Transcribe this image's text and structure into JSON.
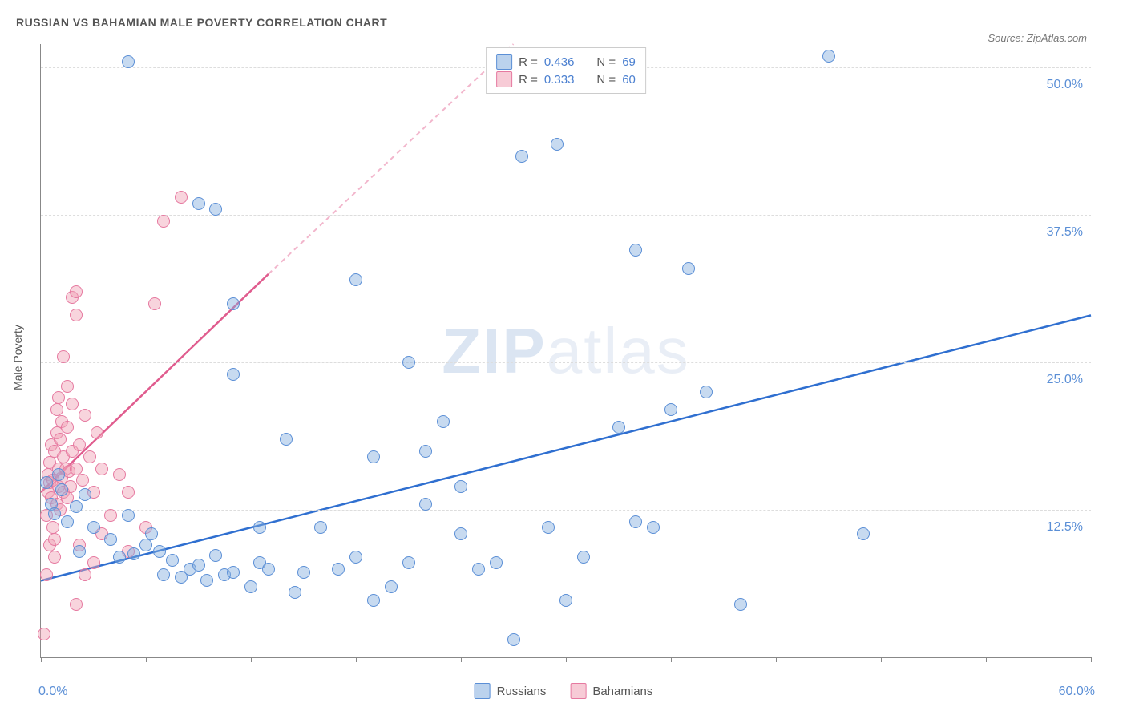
{
  "title": "RUSSIAN VS BAHAMIAN MALE POVERTY CORRELATION CHART",
  "source_label": "Source: ZipAtlas.com",
  "watermark": {
    "left": "ZIP",
    "right": "atlas"
  },
  "y_axis_title": "Male Poverty",
  "xlim": [
    0,
    60
  ],
  "ylim": [
    0,
    52
  ],
  "x_start_label": "0.0%",
  "x_end_label": "60.0%",
  "x_ticks": [
    0,
    6,
    12,
    18,
    24,
    30,
    36,
    42,
    48,
    54,
    60
  ],
  "y_grid": [
    {
      "v": 12.5,
      "label": "12.5%"
    },
    {
      "v": 25.0,
      "label": "25.0%"
    },
    {
      "v": 37.5,
      "label": "37.5%"
    },
    {
      "v": 50.0,
      "label": "50.0%"
    }
  ],
  "colors": {
    "blue_fill": "rgba(131,173,222,0.45)",
    "blue_stroke": "#5b8fd6",
    "blue_line": "#2f6fd0",
    "pink_fill": "rgba(240,160,180,0.45)",
    "pink_stroke": "#e679a0",
    "pink_line": "#e05c8e",
    "grid": "#dddddd",
    "axis": "#888888",
    "text": "#555555",
    "value": "#4a7fd0",
    "bg": "#ffffff"
  },
  "marker_size": 16,
  "stats_legend": [
    {
      "swatch": "blue",
      "r_label": "R =",
      "r": "0.436",
      "n_label": "N =",
      "n": "69"
    },
    {
      "swatch": "pink",
      "r_label": "R =",
      "r": "0.333",
      "n_label": "N =",
      "n": "60"
    }
  ],
  "series_legend": [
    {
      "swatch": "blue",
      "label": "Russians"
    },
    {
      "swatch": "pink",
      "label": "Bahamians"
    }
  ],
  "trend_lines": {
    "blue": {
      "x1": 0,
      "y1": 6.5,
      "x2": 60,
      "y2": 29.0,
      "color": "#2f6fd0",
      "width": 2.5
    },
    "pink_solid": {
      "x1": 0,
      "y1": 14.0,
      "x2": 13,
      "y2": 32.5,
      "color": "#e05c8e",
      "width": 2.5
    },
    "pink_dash": {
      "x1": 13,
      "y1": 32.5,
      "x2": 27,
      "y2": 52.0,
      "color": "#f2b6cc",
      "width": 2,
      "dash": "6,5"
    }
  },
  "series": {
    "russians": {
      "color": "blue",
      "points": [
        [
          0.3,
          14.8
        ],
        [
          0.6,
          13.0
        ],
        [
          0.8,
          12.2
        ],
        [
          1.0,
          15.5
        ],
        [
          1.2,
          14.2
        ],
        [
          1.5,
          11.5
        ],
        [
          2.0,
          12.8
        ],
        [
          2.2,
          9.0
        ],
        [
          2.5,
          13.8
        ],
        [
          3.0,
          11.0
        ],
        [
          4.0,
          10.0
        ],
        [
          4.5,
          8.5
        ],
        [
          5.0,
          12.0
        ],
        [
          5.0,
          50.5
        ],
        [
          5.3,
          8.8
        ],
        [
          6.0,
          9.5
        ],
        [
          6.3,
          10.5
        ],
        [
          6.8,
          9.0
        ],
        [
          7.0,
          7.0
        ],
        [
          7.5,
          8.2
        ],
        [
          8.0,
          6.8
        ],
        [
          8.5,
          7.5
        ],
        [
          9.0,
          7.8
        ],
        [
          9.0,
          38.5
        ],
        [
          9.5,
          6.5
        ],
        [
          10.0,
          8.6
        ],
        [
          10.0,
          38.0
        ],
        [
          10.5,
          7.0
        ],
        [
          11.0,
          7.2
        ],
        [
          11.0,
          30.0
        ],
        [
          11.0,
          24.0
        ],
        [
          12.0,
          6.0
        ],
        [
          12.5,
          8.0
        ],
        [
          12.5,
          11.0
        ],
        [
          13.0,
          7.5
        ],
        [
          14.0,
          18.5
        ],
        [
          14.5,
          5.5
        ],
        [
          15.0,
          7.2
        ],
        [
          16.0,
          11.0
        ],
        [
          17.0,
          7.5
        ],
        [
          18.0,
          8.5
        ],
        [
          18.0,
          32.0
        ],
        [
          19.0,
          17.0
        ],
        [
          19.0,
          4.8
        ],
        [
          20.0,
          6.0
        ],
        [
          21.0,
          8.0
        ],
        [
          21.0,
          25.0
        ],
        [
          22.0,
          17.5
        ],
        [
          22.0,
          13.0
        ],
        [
          23.0,
          20.0
        ],
        [
          24.0,
          10.5
        ],
        [
          24.0,
          14.5
        ],
        [
          25.0,
          7.5
        ],
        [
          26.0,
          8.0
        ],
        [
          27.0,
          1.5
        ],
        [
          27.5,
          42.5
        ],
        [
          29.0,
          11.0
        ],
        [
          29.5,
          43.5
        ],
        [
          30.0,
          4.8
        ],
        [
          31.0,
          8.5
        ],
        [
          33.0,
          19.5
        ],
        [
          34.0,
          11.5
        ],
        [
          34.0,
          34.5
        ],
        [
          35.0,
          11.0
        ],
        [
          36.0,
          21.0
        ],
        [
          37.0,
          33.0
        ],
        [
          38.0,
          22.5
        ],
        [
          40.0,
          4.5
        ],
        [
          45.0,
          51.0
        ],
        [
          47.0,
          10.5
        ]
      ]
    },
    "bahamians": {
      "color": "pink",
      "points": [
        [
          0.2,
          2.0
        ],
        [
          0.3,
          7.0
        ],
        [
          0.3,
          12.0
        ],
        [
          0.4,
          14.0
        ],
        [
          0.4,
          15.5
        ],
        [
          0.5,
          9.5
        ],
        [
          0.5,
          16.5
        ],
        [
          0.5,
          14.8
        ],
        [
          0.6,
          13.5
        ],
        [
          0.6,
          18.0
        ],
        [
          0.7,
          11.0
        ],
        [
          0.7,
          15.0
        ],
        [
          0.8,
          10.0
        ],
        [
          0.8,
          17.5
        ],
        [
          0.8,
          8.5
        ],
        [
          0.9,
          19.0
        ],
        [
          0.9,
          13.0
        ],
        [
          0.9,
          21.0
        ],
        [
          1.0,
          14.5
        ],
        [
          1.0,
          16.0
        ],
        [
          1.0,
          22.0
        ],
        [
          1.1,
          12.5
        ],
        [
          1.1,
          18.5
        ],
        [
          1.2,
          15.2
        ],
        [
          1.2,
          20.0
        ],
        [
          1.3,
          14.0
        ],
        [
          1.3,
          17.0
        ],
        [
          1.3,
          25.5
        ],
        [
          1.4,
          16.0
        ],
        [
          1.5,
          13.5
        ],
        [
          1.5,
          19.5
        ],
        [
          1.5,
          23.0
        ],
        [
          1.6,
          15.8
        ],
        [
          1.7,
          14.5
        ],
        [
          1.8,
          17.5
        ],
        [
          1.8,
          21.5
        ],
        [
          1.8,
          30.5
        ],
        [
          2.0,
          4.5
        ],
        [
          2.0,
          16.0
        ],
        [
          2.0,
          29.0
        ],
        [
          2.0,
          31.0
        ],
        [
          2.2,
          18.0
        ],
        [
          2.2,
          9.5
        ],
        [
          2.4,
          15.0
        ],
        [
          2.5,
          20.5
        ],
        [
          2.5,
          7.0
        ],
        [
          2.8,
          17.0
        ],
        [
          3.0,
          14.0
        ],
        [
          3.0,
          8.0
        ],
        [
          3.2,
          19.0
        ],
        [
          3.5,
          10.5
        ],
        [
          3.5,
          16.0
        ],
        [
          4.0,
          12.0
        ],
        [
          4.5,
          15.5
        ],
        [
          5.0,
          14.0
        ],
        [
          5.0,
          9.0
        ],
        [
          6.0,
          11.0
        ],
        [
          6.5,
          30.0
        ],
        [
          7.0,
          37.0
        ],
        [
          8.0,
          39.0
        ]
      ]
    }
  }
}
